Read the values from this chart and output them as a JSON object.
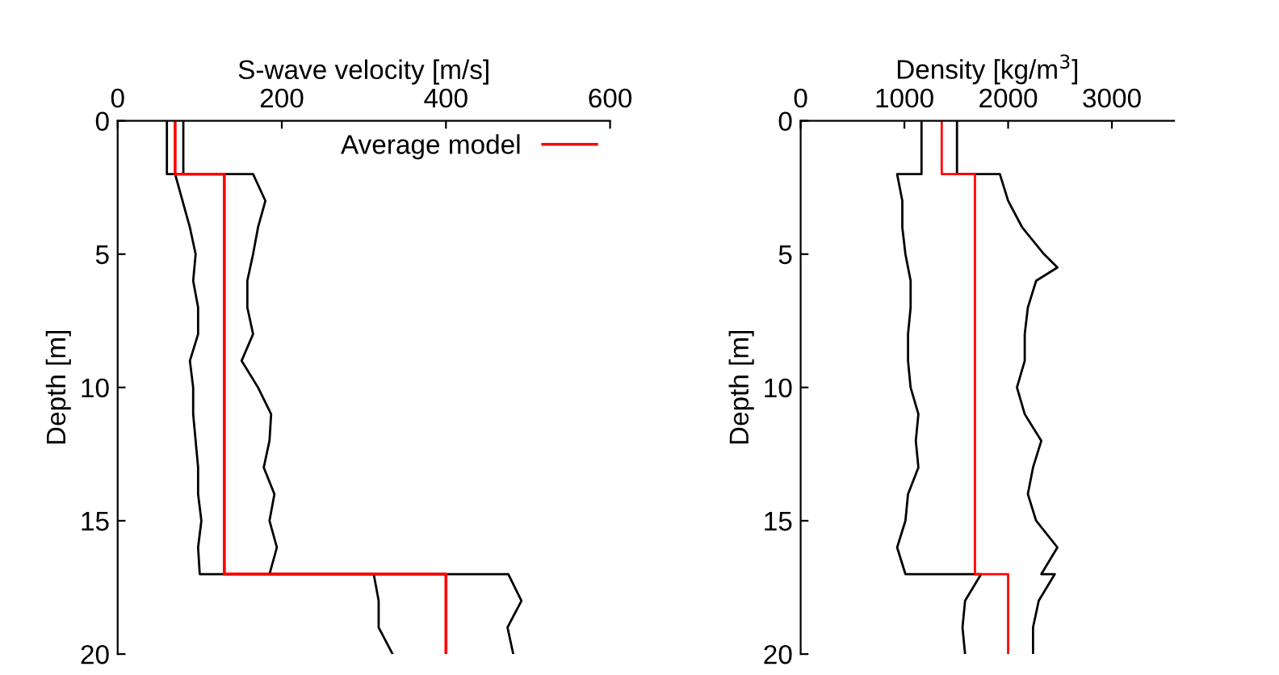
{
  "chart_data": [
    {
      "type": "line",
      "xlabel": "S-wave velocity [m/s]",
      "ylabel": "Depth [m]",
      "xlim": [
        0,
        600
      ],
      "xticks": [
        0,
        200,
        400,
        600
      ],
      "ylim": [
        20,
        0
      ],
      "yticks": [
        0,
        5,
        10,
        15,
        20
      ],
      "legend": "top right",
      "grid": false,
      "series": [
        {
          "color": "#000000",
          "x": [
            60,
            60,
            70,
            79,
            88,
            95,
            92,
            98,
            98,
            88,
            92,
            92,
            95,
            98,
            98,
            102,
            98,
            100,
            312,
            318,
            318,
            335
          ],
          "values": [
            0,
            2,
            2,
            3,
            4,
            5,
            6,
            7,
            8,
            9,
            10,
            11,
            12,
            13,
            14,
            15,
            16,
            17,
            17,
            18,
            19,
            20
          ]
        },
        {
          "color": "#000000",
          "x": [
            80,
            80,
            165,
            180,
            171,
            165,
            158,
            158,
            165,
            151,
            171,
            187,
            185,
            178,
            191,
            185,
            194,
            185,
            476,
            492,
            475,
            482
          ],
          "values": [
            0,
            2,
            2,
            3,
            4,
            5,
            6,
            7,
            8,
            9,
            10,
            11,
            12,
            13,
            14,
            15,
            16,
            17,
            17,
            18,
            19,
            20
          ]
        },
        {
          "name": "Average model",
          "color": "#ff0000",
          "x": [
            70,
            70,
            130,
            130,
            400,
            400
          ],
          "values": [
            0,
            2,
            2,
            17,
            17,
            20
          ]
        }
      ]
    },
    {
      "type": "line",
      "xlabel": "Density [kg/m$^{3}$]",
      "ylabel": "Depth [m]",
      "xlim": [
        0,
        3600
      ],
      "xticks": [
        0,
        1000,
        2000,
        3000
      ],
      "ylim": [
        20,
        0
      ],
      "yticks": [
        0,
        5,
        10,
        15,
        20
      ],
      "grid": false,
      "series": [
        {
          "color": "#000000",
          "x": [
            1165,
            1165,
            930,
            980,
            980,
            1010,
            1060,
            1060,
            1035,
            1035,
            1060,
            1135,
            1110,
            1135,
            1035,
            1010,
            930,
            1010,
            1740,
            1585,
            1560,
            1585
          ],
          "values": [
            0,
            2,
            2,
            3,
            4,
            5,
            6,
            7,
            8,
            9,
            10,
            11,
            12,
            13,
            14,
            15,
            16,
            17,
            17,
            18,
            19,
            20
          ]
        },
        {
          "color": "#000000",
          "x": [
            1507,
            1507,
            1920,
            2000,
            2136,
            2346,
            2475,
            2270,
            2190,
            2160,
            2160,
            2085,
            2160,
            2320,
            2240,
            2190,
            2270,
            2475,
            2320,
            2450,
            2295,
            2240,
            2240
          ],
          "values": [
            0,
            2,
            2,
            3,
            4,
            5,
            5.5,
            6,
            7,
            8,
            9,
            10,
            11,
            12,
            13,
            14,
            15,
            16,
            17,
            17,
            18,
            19,
            20
          ]
        },
        {
          "color": "#ff0000",
          "x": [
            1360,
            1360,
            1680,
            1680,
            2000,
            2000
          ],
          "values": [
            0,
            2,
            2,
            17,
            17,
            20
          ]
        }
      ]
    }
  ]
}
